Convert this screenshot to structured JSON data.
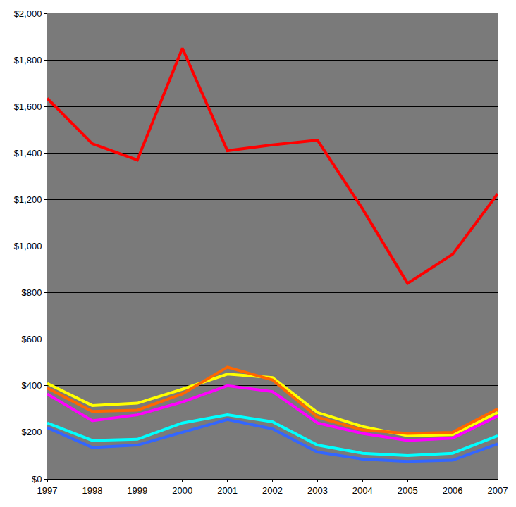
{
  "chart_data": {
    "type": "line",
    "x": [
      1997,
      1998,
      1999,
      2000,
      2001,
      2002,
      2003,
      2004,
      2005,
      2006,
      2007
    ],
    "series": [
      {
        "color": "#3366ff",
        "values": [
          220,
          135,
          145,
          200,
          255,
          215,
          115,
          85,
          75,
          80,
          150
        ]
      },
      {
        "color": "#00ffff",
        "values": [
          240,
          165,
          170,
          240,
          275,
          245,
          145,
          110,
          100,
          110,
          185
        ]
      },
      {
        "color": "#ff00ff",
        "values": [
          365,
          250,
          275,
          330,
          400,
          375,
          240,
          195,
          165,
          175,
          270
        ]
      },
      {
        "color": "#ffff00",
        "values": [
          410,
          315,
          325,
          385,
          450,
          435,
          285,
          225,
          185,
          190,
          285
        ]
      },
      {
        "color": "#ff6600",
        "values": [
          390,
          290,
          295,
          365,
          480,
          425,
          265,
          210,
          195,
          200,
          300
        ]
      },
      {
        "color": "#ff0000",
        "values": [
          1635,
          1440,
          1370,
          1850,
          1410,
          1435,
          1455,
          1160,
          840,
          965,
          1225
        ]
      }
    ],
    "xlim": [
      1997,
      2007
    ],
    "xticks": [
      1997,
      1998,
      1999,
      2000,
      2001,
      2002,
      2003,
      2004,
      2005,
      2006,
      2007
    ],
    "ylim": [
      0,
      2000
    ],
    "yticks": [
      {
        "value": 0,
        "label": "$0"
      },
      {
        "value": 200,
        "label": "$200"
      },
      {
        "value": 400,
        "label": "$400"
      },
      {
        "value": 600,
        "label": "$600"
      },
      {
        "value": 800,
        "label": "$800"
      },
      {
        "value": 1000,
        "label": "$1,000"
      },
      {
        "value": 1200,
        "label": "$1,200"
      },
      {
        "value": 1400,
        "label": "$1,400"
      },
      {
        "value": 1600,
        "label": "$1,600"
      },
      {
        "value": 1800,
        "label": "$1,800"
      },
      {
        "value": 2000,
        "label": "$2,000"
      }
    ],
    "grid": true
  }
}
